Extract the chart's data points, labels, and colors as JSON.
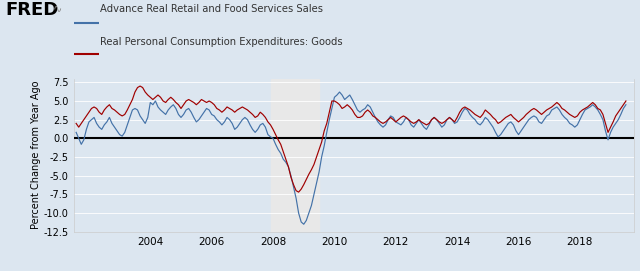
{
  "legend1": "Advance Real Retail and Food Services Sales",
  "legend2": "Real Personal Consumption Expenditures: Goods",
  "ylabel": "Percent Change from Year Ago",
  "xlim_start": 2001.5,
  "xlim_end": 2019.75,
  "ylim": [
    -12.5,
    8.0
  ],
  "yticks": [
    -12.5,
    -10.0,
    -7.5,
    -5.0,
    -2.5,
    0.0,
    2.5,
    5.0,
    7.5
  ],
  "xticks": [
    2004,
    2006,
    2008,
    2010,
    2012,
    2014,
    2016,
    2018
  ],
  "recession_start": 2007.917,
  "recession_end": 2009.5,
  "color_retail": "#4472a8",
  "color_pce": "#a00000",
  "bg_color": "#dce6f0",
  "plot_bg": "#dce6f0",
  "recession_color": "#e8e8e8",
  "zero_line_color": "#000000",
  "retail_x": [
    2001.583,
    2001.667,
    2001.75,
    2001.833,
    2001.917,
    2002.0,
    2002.083,
    2002.167,
    2002.25,
    2002.333,
    2002.417,
    2002.5,
    2002.583,
    2002.667,
    2002.75,
    2002.833,
    2002.917,
    2003.0,
    2003.083,
    2003.167,
    2003.25,
    2003.333,
    2003.417,
    2003.5,
    2003.583,
    2003.667,
    2003.75,
    2003.833,
    2003.917,
    2004.0,
    2004.083,
    2004.167,
    2004.25,
    2004.333,
    2004.417,
    2004.5,
    2004.583,
    2004.667,
    2004.75,
    2004.833,
    2004.917,
    2005.0,
    2005.083,
    2005.167,
    2005.25,
    2005.333,
    2005.417,
    2005.5,
    2005.583,
    2005.667,
    2005.75,
    2005.833,
    2005.917,
    2006.0,
    2006.083,
    2006.167,
    2006.25,
    2006.333,
    2006.417,
    2006.5,
    2006.583,
    2006.667,
    2006.75,
    2006.833,
    2006.917,
    2007.0,
    2007.083,
    2007.167,
    2007.25,
    2007.333,
    2007.417,
    2007.5,
    2007.583,
    2007.667,
    2007.75,
    2007.833,
    2007.917,
    2008.0,
    2008.083,
    2008.167,
    2008.25,
    2008.333,
    2008.417,
    2008.5,
    2008.583,
    2008.667,
    2008.75,
    2008.833,
    2008.917,
    2009.0,
    2009.083,
    2009.167,
    2009.25,
    2009.333,
    2009.417,
    2009.5,
    2009.583,
    2009.667,
    2009.75,
    2009.833,
    2009.917,
    2010.0,
    2010.083,
    2010.167,
    2010.25,
    2010.333,
    2010.417,
    2010.5,
    2010.583,
    2010.667,
    2010.75,
    2010.833,
    2010.917,
    2011.0,
    2011.083,
    2011.167,
    2011.25,
    2011.333,
    2011.417,
    2011.5,
    2011.583,
    2011.667,
    2011.75,
    2011.833,
    2011.917,
    2012.0,
    2012.083,
    2012.167,
    2012.25,
    2012.333,
    2012.417,
    2012.5,
    2012.583,
    2012.667,
    2012.75,
    2012.833,
    2012.917,
    2013.0,
    2013.083,
    2013.167,
    2013.25,
    2013.333,
    2013.417,
    2013.5,
    2013.583,
    2013.667,
    2013.75,
    2013.833,
    2013.917,
    2014.0,
    2014.083,
    2014.167,
    2014.25,
    2014.333,
    2014.417,
    2014.5,
    2014.583,
    2014.667,
    2014.75,
    2014.833,
    2014.917,
    2015.0,
    2015.083,
    2015.167,
    2015.25,
    2015.333,
    2015.417,
    2015.5,
    2015.583,
    2015.667,
    2015.75,
    2015.833,
    2015.917,
    2016.0,
    2016.083,
    2016.167,
    2016.25,
    2016.333,
    2016.417,
    2016.5,
    2016.583,
    2016.667,
    2016.75,
    2016.833,
    2016.917,
    2017.0,
    2017.083,
    2017.167,
    2017.25,
    2017.333,
    2017.417,
    2017.5,
    2017.583,
    2017.667,
    2017.75,
    2017.833,
    2017.917,
    2018.0,
    2018.083,
    2018.167,
    2018.25,
    2018.333,
    2018.417,
    2018.5,
    2018.583,
    2018.667,
    2018.75,
    2018.833,
    2018.917,
    2019.0,
    2019.083,
    2019.167,
    2019.25,
    2019.333,
    2019.417,
    2019.5
  ],
  "retail_y": [
    0.8,
    0.0,
    -0.8,
    -0.2,
    1.2,
    2.2,
    2.5,
    2.8,
    2.0,
    1.5,
    1.2,
    1.8,
    2.2,
    2.8,
    2.0,
    1.5,
    1.0,
    0.5,
    0.3,
    0.8,
    1.8,
    2.8,
    3.8,
    4.0,
    3.8,
    3.0,
    2.5,
    2.0,
    2.8,
    4.8,
    4.5,
    5.0,
    4.2,
    3.8,
    3.5,
    3.2,
    3.8,
    4.2,
    4.5,
    4.0,
    3.2,
    2.8,
    3.2,
    3.8,
    4.0,
    3.5,
    2.8,
    2.2,
    2.5,
    3.0,
    3.5,
    4.0,
    3.8,
    3.2,
    3.0,
    2.5,
    2.2,
    1.8,
    2.2,
    2.8,
    2.5,
    2.0,
    1.2,
    1.5,
    2.0,
    2.5,
    2.8,
    2.5,
    1.8,
    1.2,
    0.8,
    1.2,
    1.8,
    2.0,
    1.5,
    0.5,
    0.2,
    0.0,
    -0.8,
    -1.5,
    -2.0,
    -2.8,
    -3.2,
    -3.8,
    -5.0,
    -6.5,
    -8.0,
    -10.0,
    -11.2,
    -11.5,
    -11.0,
    -10.0,
    -9.0,
    -7.5,
    -6.0,
    -4.5,
    -2.5,
    -1.0,
    0.8,
    2.5,
    4.0,
    5.5,
    5.8,
    6.2,
    5.8,
    5.2,
    5.5,
    5.8,
    5.2,
    4.5,
    3.8,
    3.5,
    3.8,
    4.0,
    4.5,
    4.2,
    3.5,
    2.8,
    2.2,
    1.8,
    1.5,
    1.8,
    2.5,
    3.0,
    2.8,
    2.2,
    2.0,
    1.8,
    2.2,
    2.8,
    2.5,
    1.8,
    1.5,
    2.0,
    2.5,
    2.0,
    1.5,
    1.2,
    1.8,
    2.5,
    2.8,
    2.5,
    2.0,
    1.5,
    1.8,
    2.5,
    2.8,
    2.5,
    2.0,
    2.2,
    2.8,
    3.5,
    4.0,
    3.8,
    3.2,
    2.8,
    2.5,
    2.0,
    1.8,
    2.2,
    2.8,
    2.5,
    2.0,
    1.5,
    0.8,
    0.2,
    0.5,
    1.0,
    1.5,
    2.0,
    2.2,
    1.8,
    1.0,
    0.5,
    1.0,
    1.5,
    2.0,
    2.5,
    2.8,
    3.0,
    2.8,
    2.2,
    2.0,
    2.5,
    3.0,
    3.2,
    3.8,
    4.0,
    4.2,
    3.8,
    3.2,
    2.8,
    2.5,
    2.0,
    1.8,
    1.5,
    1.8,
    2.5,
    3.2,
    3.8,
    4.0,
    4.2,
    4.5,
    4.2,
    3.8,
    3.2,
    2.5,
    1.0,
    -0.2,
    0.8,
    1.5,
    2.0,
    2.5,
    3.2,
    4.0,
    4.5
  ],
  "pce_x": [
    2001.583,
    2001.667,
    2001.75,
    2001.833,
    2001.917,
    2002.0,
    2002.083,
    2002.167,
    2002.25,
    2002.333,
    2002.417,
    2002.5,
    2002.583,
    2002.667,
    2002.75,
    2002.833,
    2002.917,
    2003.0,
    2003.083,
    2003.167,
    2003.25,
    2003.333,
    2003.417,
    2003.5,
    2003.583,
    2003.667,
    2003.75,
    2003.833,
    2003.917,
    2004.0,
    2004.083,
    2004.167,
    2004.25,
    2004.333,
    2004.417,
    2004.5,
    2004.583,
    2004.667,
    2004.75,
    2004.833,
    2004.917,
    2005.0,
    2005.083,
    2005.167,
    2005.25,
    2005.333,
    2005.417,
    2005.5,
    2005.583,
    2005.667,
    2005.75,
    2005.833,
    2005.917,
    2006.0,
    2006.083,
    2006.167,
    2006.25,
    2006.333,
    2006.417,
    2006.5,
    2006.583,
    2006.667,
    2006.75,
    2006.833,
    2006.917,
    2007.0,
    2007.083,
    2007.167,
    2007.25,
    2007.333,
    2007.417,
    2007.5,
    2007.583,
    2007.667,
    2007.75,
    2007.833,
    2007.917,
    2008.0,
    2008.083,
    2008.167,
    2008.25,
    2008.333,
    2008.417,
    2008.5,
    2008.583,
    2008.667,
    2008.75,
    2008.833,
    2008.917,
    2009.0,
    2009.083,
    2009.167,
    2009.25,
    2009.333,
    2009.417,
    2009.5,
    2009.583,
    2009.667,
    2009.75,
    2009.833,
    2009.917,
    2010.0,
    2010.083,
    2010.167,
    2010.25,
    2010.333,
    2010.417,
    2010.5,
    2010.583,
    2010.667,
    2010.75,
    2010.833,
    2010.917,
    2011.0,
    2011.083,
    2011.167,
    2011.25,
    2011.333,
    2011.417,
    2011.5,
    2011.583,
    2011.667,
    2011.75,
    2011.833,
    2011.917,
    2012.0,
    2012.083,
    2012.167,
    2012.25,
    2012.333,
    2012.417,
    2012.5,
    2012.583,
    2012.667,
    2012.75,
    2012.833,
    2012.917,
    2013.0,
    2013.083,
    2013.167,
    2013.25,
    2013.333,
    2013.417,
    2013.5,
    2013.583,
    2013.667,
    2013.75,
    2013.833,
    2013.917,
    2014.0,
    2014.083,
    2014.167,
    2014.25,
    2014.333,
    2014.417,
    2014.5,
    2014.583,
    2014.667,
    2014.75,
    2014.833,
    2014.917,
    2015.0,
    2015.083,
    2015.167,
    2015.25,
    2015.333,
    2015.417,
    2015.5,
    2015.583,
    2015.667,
    2015.75,
    2015.833,
    2015.917,
    2016.0,
    2016.083,
    2016.167,
    2016.25,
    2016.333,
    2016.417,
    2016.5,
    2016.583,
    2016.667,
    2016.75,
    2016.833,
    2016.917,
    2017.0,
    2017.083,
    2017.167,
    2017.25,
    2017.333,
    2017.417,
    2017.5,
    2017.583,
    2017.667,
    2017.75,
    2017.833,
    2017.917,
    2018.0,
    2018.083,
    2018.167,
    2018.25,
    2018.333,
    2018.417,
    2018.5,
    2018.583,
    2018.667,
    2018.75,
    2018.833,
    2018.917,
    2019.0,
    2019.083,
    2019.167,
    2019.25,
    2019.333,
    2019.417,
    2019.5
  ],
  "pce_y": [
    2.0,
    1.5,
    2.0,
    2.5,
    3.0,
    3.5,
    4.0,
    4.2,
    4.0,
    3.5,
    3.2,
    3.8,
    4.2,
    4.5,
    4.0,
    3.8,
    3.5,
    3.2,
    3.0,
    3.2,
    3.8,
    4.5,
    5.2,
    6.2,
    6.8,
    7.0,
    6.8,
    6.2,
    5.8,
    5.5,
    5.2,
    5.5,
    5.8,
    5.5,
    5.0,
    4.8,
    5.2,
    5.5,
    5.2,
    4.8,
    4.5,
    4.0,
    4.5,
    5.0,
    5.2,
    5.0,
    4.8,
    4.5,
    4.8,
    5.2,
    5.0,
    4.8,
    5.0,
    4.8,
    4.5,
    4.0,
    3.8,
    3.5,
    3.8,
    4.2,
    4.0,
    3.8,
    3.5,
    3.8,
    4.0,
    4.2,
    4.0,
    3.8,
    3.5,
    3.2,
    2.8,
    3.0,
    3.5,
    3.2,
    2.8,
    2.2,
    1.8,
    1.2,
    0.5,
    -0.2,
    -0.8,
    -1.8,
    -2.8,
    -3.8,
    -5.2,
    -6.2,
    -7.0,
    -7.2,
    -6.8,
    -6.2,
    -5.5,
    -4.8,
    -4.2,
    -3.5,
    -2.5,
    -1.5,
    -0.5,
    1.0,
    2.0,
    3.5,
    5.0,
    5.0,
    4.8,
    4.5,
    4.0,
    4.2,
    4.5,
    4.2,
    3.8,
    3.2,
    2.8,
    2.8,
    3.0,
    3.5,
    3.8,
    3.5,
    3.0,
    2.8,
    2.5,
    2.2,
    2.0,
    2.2,
    2.5,
    2.8,
    2.5,
    2.2,
    2.5,
    2.8,
    3.0,
    2.8,
    2.5,
    2.2,
    2.0,
    2.2,
    2.5,
    2.2,
    2.0,
    1.8,
    2.0,
    2.5,
    2.8,
    2.5,
    2.2,
    2.0,
    2.2,
    2.5,
    2.8,
    2.5,
    2.2,
    2.8,
    3.5,
    4.0,
    4.2,
    4.0,
    3.8,
    3.5,
    3.2,
    3.0,
    2.8,
    3.2,
    3.8,
    3.5,
    3.2,
    2.8,
    2.5,
    2.0,
    2.2,
    2.5,
    2.8,
    3.0,
    3.2,
    2.8,
    2.5,
    2.2,
    2.5,
    2.8,
    3.2,
    3.5,
    3.8,
    4.0,
    3.8,
    3.5,
    3.2,
    3.5,
    3.8,
    4.0,
    4.2,
    4.5,
    4.8,
    4.5,
    4.0,
    3.8,
    3.5,
    3.2,
    3.0,
    2.8,
    3.0,
    3.5,
    3.8,
    4.0,
    4.2,
    4.5,
    4.8,
    4.5,
    4.0,
    3.8,
    3.2,
    2.0,
    0.8,
    1.5,
    2.2,
    3.0,
    3.5,
    4.0,
    4.5,
    5.0
  ]
}
